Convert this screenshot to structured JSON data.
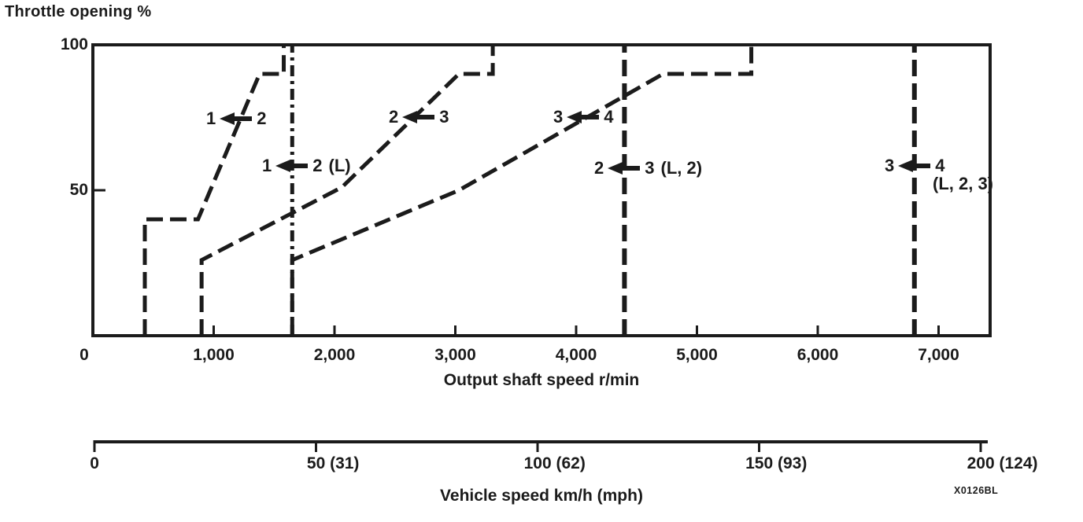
{
  "page": {
    "title": "Throttle opening %",
    "figure_code": "X0126BL"
  },
  "chart_data": {
    "type": "line",
    "title": "Throttle opening %",
    "ylabel": "Throttle opening %",
    "xlabel": "Output shaft speed r/min",
    "x2label": "Vehicle speed km/h (mph)",
    "xlim": [
      0,
      7450
    ],
    "ylim": [
      0,
      100
    ],
    "x2lim": [
      0,
      200
    ],
    "grid": false,
    "line_color": "#1b1b1b",
    "origin_label": "0",
    "y_ticks": [
      {
        "value": 100,
        "label": "100"
      },
      {
        "value": 50,
        "label": "50"
      }
    ],
    "x_ticks": [
      {
        "value": 1000,
        "label": "1,000"
      },
      {
        "value": 2000,
        "label": "2,000"
      },
      {
        "value": 3000,
        "label": "3,000"
      },
      {
        "value": 4000,
        "label": "4,000"
      },
      {
        "value": 5000,
        "label": "5,000"
      },
      {
        "value": 6000,
        "label": "6,000"
      },
      {
        "value": 7000,
        "label": "7,000"
      }
    ],
    "x2_ticks": [
      {
        "value": 0,
        "label": "0"
      },
      {
        "value": 50,
        "label": "50 (31)"
      },
      {
        "value": 100,
        "label": "100 (62)"
      },
      {
        "value": 150,
        "label": "150 (93)"
      },
      {
        "value": 200,
        "label": "200 (124)"
      }
    ],
    "series": [
      {
        "id": "s12",
        "name": "2 to 1 downshift curve",
        "style": "dashed",
        "points": [
          [
            430,
            0
          ],
          [
            430,
            40
          ],
          [
            870,
            40
          ],
          [
            1380,
            90
          ],
          [
            1580,
            90
          ],
          [
            1580,
            100
          ]
        ]
      },
      {
        "id": "s23",
        "name": "3 to 2 downshift curve",
        "style": "dashed",
        "points": [
          [
            900,
            0
          ],
          [
            900,
            26
          ],
          [
            2060,
            51
          ],
          [
            3030,
            90
          ],
          [
            3310,
            90
          ],
          [
            3310,
            100
          ]
        ]
      },
      {
        "id": "s34",
        "name": "4 to 3 downshift curve",
        "style": "dashed",
        "points": [
          [
            1650,
            0
          ],
          [
            1650,
            26
          ],
          [
            3030,
            50
          ],
          [
            4720,
            90
          ],
          [
            5450,
            90
          ],
          [
            5450,
            100
          ]
        ]
      }
    ],
    "vertical_lines": [
      {
        "id": "v12L",
        "rpm": 1650,
        "style": "dashdot",
        "name": "2 to 1 downshift (L range)"
      },
      {
        "id": "v23L2",
        "rpm": 4400,
        "style": "dashed",
        "name": "3 to 2 downshift (L, 2 range)"
      },
      {
        "id": "v34L23",
        "rpm": 6800,
        "style": "dashed",
        "name": "4 to 3 downshift (L, 2, 3 range)"
      }
    ],
    "annotations": [
      {
        "id": "s12",
        "from": "1",
        "to": "2",
        "suffix": "",
        "line2": ""
      },
      {
        "id": "s23",
        "from": "2",
        "to": "3",
        "suffix": "",
        "line2": ""
      },
      {
        "id": "s34",
        "from": "3",
        "to": "4",
        "suffix": "",
        "line2": ""
      },
      {
        "id": "v12L",
        "from": "1",
        "to": "2",
        "suffix": "(L)",
        "line2": ""
      },
      {
        "id": "v23L2",
        "from": "2",
        "to": "3",
        "suffix": "(L, 2)",
        "line2": ""
      },
      {
        "id": "v34L23",
        "from": "3",
        "to": "4",
        "suffix": "",
        "line2": "(L, 2, 3)"
      }
    ]
  }
}
